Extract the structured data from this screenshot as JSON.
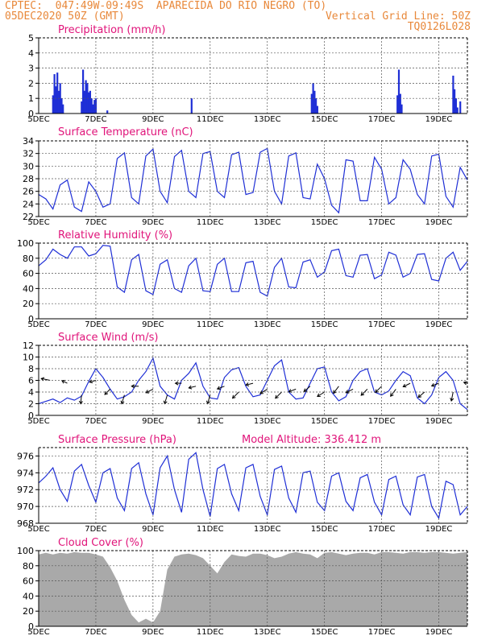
{
  "header": {
    "line1": "CPTEC:  047:49W-09:49S  APARECIDA DO RIO NEGRO (TO)",
    "line2_left": "05DEC2020 50Z (GMT)",
    "line2_right": "Vertical Grid Line: 50Z",
    "line3_right": "TQ0126L028"
  },
  "x_axis": {
    "ticks": [
      "5DEC",
      "7DEC",
      "9DEC",
      "11DEC",
      "13DEC",
      "15DEC",
      "17DEC",
      "19DEC"
    ],
    "tick_days": [
      5,
      7,
      9,
      11,
      13,
      15,
      17,
      19
    ],
    "range_days": [
      5,
      20.0
    ]
  },
  "colors": {
    "header": "#e8883a",
    "title": "#e0147a",
    "line": "#1f2fd6",
    "cloud": "#a9a9a9"
  },
  "chart_data": [
    {
      "type": "bar",
      "title": "Precipitation (mm/h)",
      "ylim": [
        0,
        5
      ],
      "yticks": [
        0,
        1,
        2,
        3,
        4,
        5
      ],
      "bars": [
        [
          5.5,
          1.2
        ],
        [
          5.55,
          2.6
        ],
        [
          5.6,
          1.8
        ],
        [
          5.65,
          2.7
        ],
        [
          5.7,
          1.5
        ],
        [
          5.75,
          2.0
        ],
        [
          5.8,
          1.0
        ],
        [
          5.85,
          0.6
        ],
        [
          6.5,
          0.8
        ],
        [
          6.55,
          2.9
        ],
        [
          6.6,
          1.5
        ],
        [
          6.65,
          2.2
        ],
        [
          6.7,
          2.0
        ],
        [
          6.75,
          1.4
        ],
        [
          6.8,
          1.5
        ],
        [
          6.85,
          1.0
        ],
        [
          6.9,
          0.6
        ],
        [
          6.95,
          0.9
        ],
        [
          7.0,
          1.0
        ],
        [
          7.4,
          0.2
        ],
        [
          10.35,
          1.0
        ],
        [
          14.55,
          1.3
        ],
        [
          14.6,
          2.0
        ],
        [
          14.65,
          1.5
        ],
        [
          14.7,
          1.0
        ],
        [
          14.75,
          0.5
        ],
        [
          17.55,
          1.2
        ],
        [
          17.6,
          2.9
        ],
        [
          17.65,
          1.3
        ],
        [
          17.7,
          0.6
        ],
        [
          19.5,
          2.5
        ],
        [
          19.55,
          1.6
        ],
        [
          19.6,
          1.0
        ],
        [
          19.65,
          0.4
        ],
        [
          19.75,
          0.8
        ]
      ]
    },
    {
      "type": "line",
      "title": "Surface Temperature (nC)",
      "ylim": [
        22,
        34
      ],
      "yticks": [
        22,
        24,
        26,
        28,
        30,
        32,
        34
      ],
      "series": [
        {
          "x": [
            5.0,
            5.25,
            5.5,
            5.75,
            6.0,
            6.25,
            6.5,
            6.75,
            7.0,
            7.25,
            7.5,
            7.75,
            8.0,
            8.25,
            8.5,
            8.75,
            9.0,
            9.25,
            9.5,
            9.75,
            10.0,
            10.25,
            10.5,
            10.75,
            11.0,
            11.25,
            11.5,
            11.75,
            12.0,
            12.25,
            12.5,
            12.75,
            13.0,
            13.25,
            13.5,
            13.75,
            14.0,
            14.25,
            14.5,
            14.75,
            15.0,
            15.25,
            15.5,
            15.75,
            16.0,
            16.25,
            16.5,
            16.75,
            17.0,
            17.25,
            17.5,
            17.75,
            18.0,
            18.25,
            18.5,
            18.75,
            19.0,
            19.25,
            19.5,
            19.75,
            20.0
          ],
          "y": [
            25.5,
            24.8,
            23.2,
            27.0,
            27.8,
            23.5,
            22.8,
            27.5,
            26.0,
            23.5,
            24.0,
            31.2,
            32.1,
            25.0,
            24.0,
            31.6,
            32.7,
            26.0,
            24.2,
            31.5,
            32.5,
            26.0,
            25.0,
            32.0,
            32.3,
            26.0,
            25.0,
            31.8,
            32.2,
            25.5,
            25.8,
            32.2,
            32.8,
            26.0,
            24.0,
            31.6,
            32.1,
            25.0,
            24.8,
            30.3,
            28.0,
            23.8,
            22.6,
            31.0,
            30.8,
            24.5,
            24.5,
            31.4,
            29.5,
            24.0,
            25.0,
            31.0,
            29.5,
            25.5,
            24.0,
            31.6,
            31.9,
            25.2,
            23.5,
            29.8,
            27.8
          ]
        }
      ]
    },
    {
      "type": "line",
      "title": "Relative Humidity (%)",
      "ylim": [
        0,
        100
      ],
      "yticks": [
        0,
        20,
        40,
        60,
        80,
        100
      ],
      "series": [
        {
          "x": [
            5.0,
            5.25,
            5.5,
            5.75,
            6.0,
            6.25,
            6.5,
            6.75,
            7.0,
            7.25,
            7.5,
            7.75,
            8.0,
            8.25,
            8.5,
            8.75,
            9.0,
            9.25,
            9.5,
            9.75,
            10.0,
            10.25,
            10.5,
            10.75,
            11.0,
            11.25,
            11.5,
            11.75,
            12.0,
            12.25,
            12.5,
            12.75,
            13.0,
            13.25,
            13.5,
            13.75,
            14.0,
            14.25,
            14.5,
            14.75,
            15.0,
            15.25,
            15.5,
            15.75,
            16.0,
            16.25,
            16.5,
            16.75,
            17.0,
            17.25,
            17.5,
            17.75,
            18.0,
            18.25,
            18.5,
            18.75,
            19.0,
            19.25,
            19.5,
            19.75,
            20.0
          ],
          "y": [
            70,
            78,
            92,
            85,
            80,
            95,
            95,
            83,
            86,
            97,
            96,
            42,
            35,
            78,
            85,
            37,
            32,
            72,
            78,
            40,
            35,
            70,
            80,
            37,
            36,
            72,
            80,
            36,
            36,
            74,
            76,
            35,
            30,
            68,
            80,
            42,
            41,
            75,
            78,
            55,
            62,
            90,
            92,
            57,
            55,
            84,
            85,
            53,
            58,
            88,
            84,
            55,
            60,
            85,
            86,
            52,
            50,
            80,
            88,
            64,
            76
          ]
        }
      ]
    },
    {
      "type": "line",
      "title": "Surface Wind (m/s)",
      "ylim": [
        0,
        12
      ],
      "yticks": [
        0,
        2,
        4,
        6,
        8,
        10,
        12
      ],
      "series": [
        {
          "x": [
            5.0,
            5.25,
            5.5,
            5.75,
            6.0,
            6.25,
            6.5,
            6.75,
            7.0,
            7.25,
            7.5,
            7.75,
            8.0,
            8.25,
            8.5,
            8.75,
            9.0,
            9.25,
            9.5,
            9.75,
            10.0,
            10.25,
            10.5,
            10.75,
            11.0,
            11.25,
            11.5,
            11.75,
            12.0,
            12.25,
            12.5,
            12.75,
            13.0,
            13.25,
            13.5,
            13.75,
            14.0,
            14.25,
            14.5,
            14.75,
            15.0,
            15.25,
            15.5,
            15.75,
            16.0,
            16.25,
            16.5,
            16.75,
            17.0,
            17.25,
            17.5,
            17.75,
            18.0,
            18.25,
            18.5,
            18.75,
            19.0,
            19.25,
            19.5,
            19.75,
            20.0
          ],
          "y": [
            2.0,
            2.4,
            2.8,
            2.2,
            3.0,
            2.6,
            3.3,
            5.8,
            8.0,
            6.5,
            4.5,
            2.8,
            3.2,
            4.0,
            6.0,
            7.5,
            9.8,
            5.0,
            3.5,
            2.8,
            6.0,
            7.2,
            9.0,
            5.0,
            3.0,
            2.8,
            6.5,
            7.8,
            8.2,
            5.0,
            3.2,
            3.5,
            6.0,
            8.5,
            9.5,
            4.0,
            2.8,
            3.0,
            5.5,
            8.0,
            8.3,
            4.0,
            2.5,
            3.2,
            6.0,
            7.5,
            8.0,
            4.0,
            3.5,
            4.2,
            6.0,
            7.5,
            6.8,
            3.0,
            2.0,
            3.5,
            6.5,
            7.5,
            6.0,
            2.0,
            1.0
          ]
        }
      ],
      "vectors": [
        {
          "x": 5.4,
          "y": 6.0,
          "dx": -1,
          "dy": 0.2
        },
        {
          "x": 6.0,
          "y": 5.5,
          "dx": -0.6,
          "dy": 0.3
        },
        {
          "x": 6.5,
          "y": 3.5,
          "dx": -0.1,
          "dy": -1
        },
        {
          "x": 7.0,
          "y": 6.0,
          "dx": -0.7,
          "dy": -0.2
        },
        {
          "x": 7.5,
          "y": 4.5,
          "dx": -0.6,
          "dy": -0.6
        },
        {
          "x": 8.0,
          "y": 3.5,
          "dx": -0.3,
          "dy": -1
        },
        {
          "x": 8.5,
          "y": 5.0,
          "dx": -0.8,
          "dy": 0
        },
        {
          "x": 9.0,
          "y": 4.5,
          "dx": -0.8,
          "dy": -0.4
        },
        {
          "x": 9.5,
          "y": 3.5,
          "dx": -0.3,
          "dy": -1
        },
        {
          "x": 10.0,
          "y": 5.5,
          "dx": -0.7,
          "dy": 0
        },
        {
          "x": 10.5,
          "y": 5.0,
          "dx": -0.8,
          "dy": -0.2
        },
        {
          "x": 11.0,
          "y": 3.5,
          "dx": -0.3,
          "dy": -1
        },
        {
          "x": 11.5,
          "y": 5.0,
          "dx": -0.8,
          "dy": -0.3
        },
        {
          "x": 12.0,
          "y": 4.0,
          "dx": -0.7,
          "dy": -0.7
        },
        {
          "x": 12.5,
          "y": 5.5,
          "dx": -0.8,
          "dy": -0.2
        },
        {
          "x": 13.0,
          "y": 4.5,
          "dx": -0.8,
          "dy": -0.5
        },
        {
          "x": 13.5,
          "y": 4.0,
          "dx": -0.7,
          "dy": -0.7
        },
        {
          "x": 14.0,
          "y": 4.5,
          "dx": -0.8,
          "dy": -0.3
        },
        {
          "x": 14.5,
          "y": 5.0,
          "dx": -0.7,
          "dy": -0.6
        },
        {
          "x": 15.0,
          "y": 4.0,
          "dx": -0.8,
          "dy": -0.5
        },
        {
          "x": 15.5,
          "y": 5.0,
          "dx": -0.6,
          "dy": -0.8
        },
        {
          "x": 16.0,
          "y": 4.5,
          "dx": -0.8,
          "dy": -0.4
        },
        {
          "x": 16.5,
          "y": 4.5,
          "dx": -0.7,
          "dy": -0.7
        },
        {
          "x": 17.0,
          "y": 5.0,
          "dx": -0.7,
          "dy": -0.7
        },
        {
          "x": 17.5,
          "y": 4.5,
          "dx": -0.6,
          "dy": -0.8
        },
        {
          "x": 18.0,
          "y": 5.5,
          "dx": -0.8,
          "dy": -0.4
        },
        {
          "x": 18.5,
          "y": 4.0,
          "dx": -0.7,
          "dy": -0.6
        },
        {
          "x": 19.0,
          "y": 5.5,
          "dx": -0.8,
          "dy": -0.3
        },
        {
          "x": 19.5,
          "y": 4.0,
          "dx": -0.2,
          "dy": -1
        },
        {
          "x": 20.0,
          "y": 5.5,
          "dx": -0.4,
          "dy": 0.1
        }
      ]
    },
    {
      "type": "line",
      "title": "Surface Pressure (hPa)",
      "subtitle": "Model Altitude: 336.412 m",
      "ylim": [
        968,
        977
      ],
      "yticks": [
        968,
        970,
        972,
        974,
        976
      ],
      "series": [
        {
          "x": [
            5.0,
            5.25,
            5.5,
            5.75,
            6.0,
            6.25,
            6.5,
            6.75,
            7.0,
            7.25,
            7.5,
            7.75,
            8.0,
            8.25,
            8.5,
            8.75,
            9.0,
            9.25,
            9.5,
            9.75,
            10.0,
            10.25,
            10.5,
            10.75,
            11.0,
            11.25,
            11.5,
            11.75,
            12.0,
            12.25,
            12.5,
            12.75,
            13.0,
            13.25,
            13.5,
            13.75,
            14.0,
            14.25,
            14.5,
            14.75,
            15.0,
            15.25,
            15.5,
            15.75,
            16.0,
            16.25,
            16.5,
            16.75,
            17.0,
            17.25,
            17.5,
            17.75,
            18.0,
            18.25,
            18.5,
            18.75,
            19.0,
            19.25,
            19.5,
            19.75,
            20.0
          ],
          "y": [
            972.8,
            973.6,
            974.6,
            972.0,
            970.6,
            974.2,
            975.0,
            972.5,
            970.5,
            974.0,
            974.5,
            971.0,
            969.5,
            974.5,
            975.2,
            971.5,
            969.0,
            974.6,
            976.0,
            972.0,
            969.3,
            975.6,
            976.4,
            972.0,
            968.8,
            974.5,
            975.0,
            971.5,
            969.5,
            974.6,
            975.0,
            971.2,
            969.0,
            974.4,
            974.8,
            971.0,
            969.3,
            974.0,
            974.2,
            970.5,
            969.5,
            973.6,
            974.0,
            970.6,
            969.5,
            973.4,
            973.8,
            970.5,
            969.0,
            973.2,
            973.6,
            970.2,
            969.0,
            973.5,
            973.8,
            970.0,
            968.6,
            973.0,
            972.6,
            969.0,
            970.0
          ]
        }
      ]
    },
    {
      "type": "area",
      "title": "Cloud Cover (%)",
      "ylim": [
        0,
        100
      ],
      "yticks": [
        0,
        20,
        40,
        60,
        80,
        100
      ],
      "series": [
        {
          "x": [
            5.0,
            5.25,
            5.5,
            5.75,
            6.0,
            6.25,
            6.5,
            6.75,
            7.0,
            7.25,
            7.5,
            7.75,
            8.0,
            8.25,
            8.5,
            8.75,
            9.0,
            9.25,
            9.5,
            9.75,
            10.0,
            10.25,
            10.5,
            10.75,
            11.0,
            11.25,
            11.5,
            11.75,
            12.0,
            12.25,
            12.5,
            12.75,
            13.0,
            13.25,
            13.5,
            13.75,
            14.0,
            14.25,
            14.5,
            14.75,
            15.0,
            15.25,
            15.5,
            15.75,
            16.0,
            16.25,
            16.5,
            16.75,
            17.0,
            17.25,
            17.5,
            17.75,
            18.0,
            18.25,
            18.5,
            18.75,
            19.0,
            19.25,
            19.5,
            19.75,
            20.0
          ],
          "y": [
            95,
            97,
            95,
            97,
            96,
            98,
            97,
            97,
            95,
            92,
            78,
            60,
            35,
            15,
            5,
            10,
            5,
            20,
            75,
            92,
            95,
            96,
            94,
            90,
            80,
            70,
            85,
            95,
            93,
            92,
            96,
            96,
            94,
            90,
            92,
            96,
            98,
            96,
            95,
            90,
            97,
            98,
            96,
            94,
            96,
            97,
            97,
            95,
            98,
            98,
            97,
            96,
            98,
            98,
            97,
            98,
            98,
            97,
            96,
            97,
            98
          ]
        }
      ]
    }
  ]
}
